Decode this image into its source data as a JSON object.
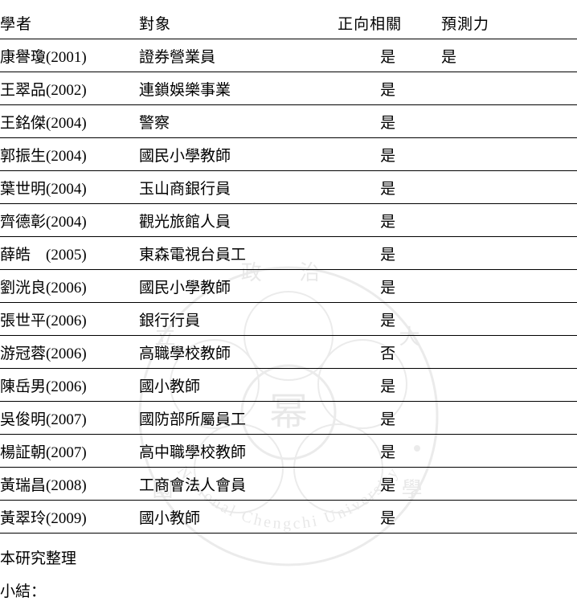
{
  "headers": {
    "scholar": "學者",
    "subject": "對象",
    "correlation": "正向相關",
    "prediction": "預測力"
  },
  "rows": [
    {
      "scholar": "康譽瓊(2001)",
      "subject": "證券營業員",
      "corr": "是",
      "pred": "是"
    },
    {
      "scholar": "王翠品(2002)",
      "subject": "連鎖娛樂事業",
      "corr": "是",
      "pred": ""
    },
    {
      "scholar": "王銘傑(2004)",
      "subject": "警察",
      "corr": "是",
      "pred": ""
    },
    {
      "scholar": "郭振生(2004)",
      "subject": "國民小學教師",
      "corr": "是",
      "pred": ""
    },
    {
      "scholar": "葉世明(2004)",
      "subject": "玉山商銀行員",
      "corr": "是",
      "pred": ""
    },
    {
      "scholar": "齊德彰(2004)",
      "subject": "觀光旅館人員",
      "corr": "是",
      "pred": ""
    },
    {
      "scholar": "薛皓　(2005)",
      "subject": "東森電視台員工",
      "corr": "是",
      "pred": ""
    },
    {
      "scholar": "劉洸良(2006)",
      "subject": "國民小學教師",
      "corr": "是",
      "pred": ""
    },
    {
      "scholar": "張世平(2006)",
      "subject": "銀行行員",
      "corr": "是",
      "pred": ""
    },
    {
      "scholar": "游冠蓉(2006)",
      "subject": "高職學校教師",
      "corr": "否",
      "pred": ""
    },
    {
      "scholar": "陳岳男(2006)",
      "subject": "國小教師",
      "corr": "是",
      "pred": ""
    },
    {
      "scholar": "吳俊明(2007)",
      "subject": "國防部所屬員工",
      "corr": "是",
      "pred": ""
    },
    {
      "scholar": "楊証朝(2007)",
      "subject": "高中職學校教師",
      "corr": "是",
      "pred": ""
    },
    {
      "scholar": "黃瑞昌(2008)",
      "subject": "工商會法人會員",
      "corr": "是",
      "pred": ""
    },
    {
      "scholar": "黃翠玲(2009)",
      "subject": "國小教師",
      "corr": "是",
      "pred": ""
    }
  ],
  "footer": {
    "source": "本研究整理",
    "section": "小結："
  },
  "watermark": {
    "arc_text": "National Chengchi University",
    "center_glyph": "幂",
    "circle_color": "#c8c8c8",
    "cjk": {
      "top": "政 治",
      "left": "立",
      "right": "大",
      "bl": "國",
      "br": "學"
    }
  },
  "style": {
    "bg": "#ffffff",
    "text_color": "#000000",
    "rule_color": "#000000",
    "font_size_pt": 14
  }
}
